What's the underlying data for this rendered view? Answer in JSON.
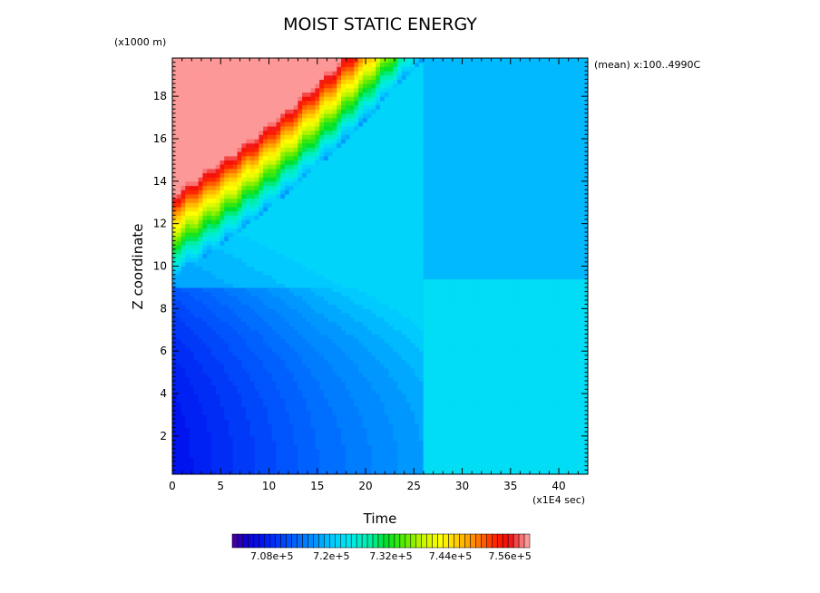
{
  "chart_data": {
    "type": "heatmap",
    "title": "MOIST STATIC ENERGY",
    "xlabel": "Time",
    "xunit": "(x1E4 sec)",
    "ylabel": "Z coordinate",
    "yunit": "(x1000 m)",
    "annotation": "(mean) x:100..4990C",
    "xlim": [
      0,
      43
    ],
    "ylim": [
      0.2,
      19.8
    ],
    "xticks": [
      0,
      5,
      10,
      15,
      20,
      25,
      30,
      35,
      40
    ],
    "yticks": [
      2,
      4,
      6,
      8,
      10,
      12,
      14,
      16,
      18
    ],
    "colorbar": {
      "min": 7.0,
      "max": 7.6,
      "levels": 55,
      "unit_power": "e+5",
      "tick_labels": [
        "7.08e+5",
        "7.2e+5",
        "7.32e+5",
        "7.44e+5",
        "7.56e+5"
      ],
      "tick_values": [
        7.08,
        7.2,
        7.32,
        7.44,
        7.56
      ]
    },
    "field_regions": [
      {
        "region": "lower troposphere, early time (t<5, z<4)",
        "approx_value_e5": 7.06
      },
      {
        "region": "mid levels early (z 6-9)",
        "approx_value_e5": 7.17
      },
      {
        "region": "upper levels early (z 12-14)",
        "approx_value_e5": 7.36
      },
      {
        "region": "top early (z 18-19.8)",
        "approx_value_e5": 7.57
      },
      {
        "region": "late time below 9.3 km (t>27)",
        "approx_value_e5": 7.22
      },
      {
        "region": "late time above 9.3 km (t>27)",
        "approx_value_e5": 7.19
      }
    ]
  }
}
